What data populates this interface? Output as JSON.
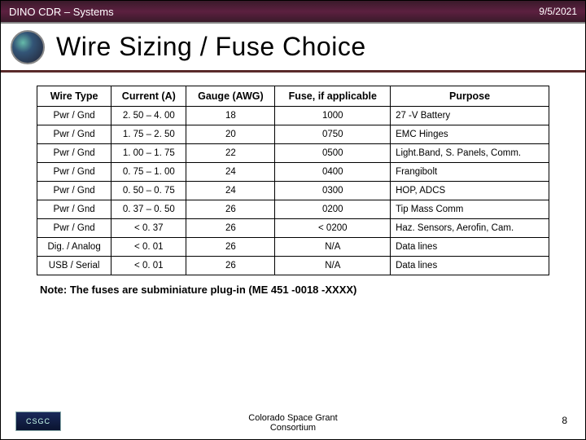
{
  "header": {
    "left": "DINO CDR – Systems",
    "right": "9/5/2021"
  },
  "title": "Wire Sizing / Fuse Choice",
  "table": {
    "columns": [
      "Wire Type",
      "Current (A)",
      "Gauge (AWG)",
      "Fuse, if applicable",
      "Purpose"
    ],
    "rows": [
      [
        "Pwr / Gnd",
        "2. 50 – 4. 00",
        "18",
        "1000",
        "27 -V Battery"
      ],
      [
        "Pwr / Gnd",
        "1. 75 – 2. 50",
        "20",
        "0750",
        "EMC Hinges"
      ],
      [
        "Pwr / Gnd",
        "1. 00 – 1. 75",
        "22",
        "0500",
        "Light.Band, S. Panels, Comm."
      ],
      [
        "Pwr / Gnd",
        "0. 75 – 1. 00",
        "24",
        "0400",
        "Frangibolt"
      ],
      [
        "Pwr / Gnd",
        "0. 50 – 0. 75",
        "24",
        "0300",
        "HOP, ADCS"
      ],
      [
        "Pwr / Gnd",
        "0. 37 – 0. 50",
        "26",
        "0200",
        "Tip Mass Comm"
      ],
      [
        "Pwr / Gnd",
        "< 0. 37",
        "26",
        "< 0200",
        "Haz. Sensors, Aerofin, Cam."
      ],
      [
        "Dig. / Analog",
        "< 0. 01",
        "26",
        "N/A",
        "Data lines"
      ],
      [
        "USB / Serial",
        "< 0. 01",
        "26",
        "N/A",
        "Data lines"
      ]
    ],
    "col_align": [
      "c",
      "c",
      "c",
      "c",
      "l"
    ]
  },
  "note": "Note: The fuses are subminiature plug-in (ME 451 -0018 -XXXX)",
  "footer": {
    "logo_text": "CSGC",
    "center_line1": "Colorado Space Grant",
    "center_line2": "Consortium",
    "page": "8"
  },
  "style": {
    "slide_w": 720,
    "slide_h": 540,
    "topbar_bg": "#4a1d36",
    "title_rule": "#5a2a2a",
    "table_border": "#000000",
    "header_fontsize": 13,
    "title_fontsize": 32,
    "table_fontsize": 11.5
  }
}
